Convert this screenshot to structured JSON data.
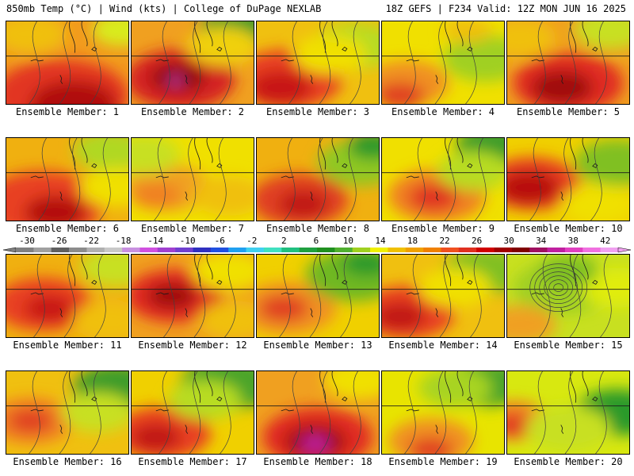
{
  "header": {
    "left": "850mb Temp (°C) | Wind (kts) | College of DuPage NEXLAB",
    "right": "18Z GEFS | F234 Valid: 12Z MON JUN 16 2025"
  },
  "colorbar": {
    "labels": [
      "-30",
      "-26",
      "-22",
      "-18",
      "-14",
      "-10",
      "-6",
      "-2",
      "2",
      "6",
      "10",
      "14",
      "18",
      "22",
      "26",
      "30",
      "34",
      "38",
      "42"
    ],
    "colors": [
      "#808080",
      "#a0a0a0",
      "#606060",
      "#8c8c8c",
      "#b0b0b0",
      "#c8c8c8",
      "#c890e0",
      "#d050e0",
      "#a040d0",
      "#7040d0",
      "#3030c0",
      "#2050e0",
      "#20a0f0",
      "#40d0f0",
      "#40e0c0",
      "#20c080",
      "#20a040",
      "#209020",
      "#50b030",
      "#a0d020",
      "#f0f000",
      "#f0c000",
      "#f0a000",
      "#f08000",
      "#f05020",
      "#e03020",
      "#d00000",
      "#a00000",
      "#800000",
      "#a01060",
      "#c020a0",
      "#e040c0",
      "#f070e0",
      "#f0a0f0"
    ]
  },
  "panels": [
    {
      "caption": "Ensemble Member: 1",
      "base": "#f29a1e",
      "blobs": [
        [
          0.45,
          0.9,
          0.55,
          "#e23424"
        ],
        [
          0.55,
          1.0,
          0.35,
          "#b00808"
        ],
        [
          0.95,
          0.1,
          0.25,
          "#d8ec1c"
        ],
        [
          0.2,
          0.15,
          0.3,
          "#f0c010"
        ]
      ]
    },
    {
      "caption": "Ensemble Member: 2",
      "base": "#f0a020",
      "blobs": [
        [
          0.4,
          0.7,
          0.45,
          "#d42020"
        ],
        [
          0.38,
          0.68,
          0.22,
          "#900808"
        ],
        [
          0.36,
          0.72,
          0.06,
          "#d040b0"
        ],
        [
          0.85,
          0.1,
          0.3,
          "#2c9a2c"
        ],
        [
          0.75,
          0.3,
          0.3,
          "#f0d010"
        ]
      ]
    },
    {
      "caption": "Ensemble Member: 3",
      "base": "#f0c010",
      "blobs": [
        [
          0.25,
          0.7,
          0.45,
          "#e84020"
        ],
        [
          0.2,
          0.8,
          0.25,
          "#c81414"
        ],
        [
          0.8,
          0.3,
          0.35,
          "#b8dc20"
        ],
        [
          0.6,
          0.4,
          0.3,
          "#f0e000"
        ]
      ]
    },
    {
      "caption": "Ensemble Member: 4",
      "base": "#f0e000",
      "blobs": [
        [
          0.2,
          0.75,
          0.35,
          "#f09020"
        ],
        [
          0.15,
          0.9,
          0.2,
          "#e04020"
        ],
        [
          0.85,
          0.45,
          0.35,
          "#a0d020"
        ],
        [
          0.7,
          0.1,
          0.2,
          "#f0c010"
        ]
      ]
    },
    {
      "caption": "Ensemble Member: 5",
      "base": "#f0a020",
      "blobs": [
        [
          0.5,
          0.75,
          0.45,
          "#e02c20"
        ],
        [
          0.45,
          0.8,
          0.25,
          "#a00808"
        ],
        [
          0.85,
          0.1,
          0.3,
          "#c8e020"
        ],
        [
          0.1,
          0.2,
          0.3,
          "#f0c010"
        ]
      ]
    },
    {
      "caption": "Ensemble Member: 6",
      "base": "#f0b010",
      "blobs": [
        [
          0.3,
          0.8,
          0.5,
          "#e84020"
        ],
        [
          0.4,
          0.9,
          0.25,
          "#b40c0c"
        ],
        [
          0.85,
          0.15,
          0.3,
          "#b0d820"
        ],
        [
          0.9,
          0.6,
          0.3,
          "#f0e000"
        ]
      ]
    },
    {
      "caption": "Ensemble Member: 7",
      "base": "#f0e000",
      "blobs": [
        [
          0.3,
          0.6,
          0.35,
          "#f0a020"
        ],
        [
          0.2,
          0.7,
          0.2,
          "#f08020"
        ],
        [
          0.8,
          0.7,
          0.3,
          "#f0c010"
        ],
        [
          0.1,
          0.2,
          0.3,
          "#c8e020"
        ]
      ]
    },
    {
      "caption": "Ensemble Member: 8",
      "base": "#f0b010",
      "blobs": [
        [
          0.35,
          0.75,
          0.4,
          "#e04020"
        ],
        [
          0.38,
          0.8,
          0.2,
          "#c01818"
        ],
        [
          0.85,
          0.3,
          0.35,
          "#90c820"
        ],
        [
          0.95,
          0.1,
          0.2,
          "#2c9a2c"
        ]
      ]
    },
    {
      "caption": "Ensemble Member: 9",
      "base": "#f0e000",
      "blobs": [
        [
          0.45,
          0.7,
          0.4,
          "#f08020"
        ],
        [
          0.42,
          0.72,
          0.2,
          "#e03020"
        ],
        [
          0.9,
          0.1,
          0.3,
          "#3c9c2c"
        ],
        [
          0.75,
          0.4,
          0.3,
          "#b8dc20"
        ]
      ]
    },
    {
      "caption": "Ensemble Member: 10",
      "base": "#f0d000",
      "blobs": [
        [
          0.2,
          0.55,
          0.4,
          "#e84020"
        ],
        [
          0.18,
          0.6,
          0.25,
          "#b80c0c"
        ],
        [
          0.9,
          0.3,
          0.35,
          "#80c020"
        ],
        [
          0.75,
          0.8,
          0.3,
          "#f0e000"
        ]
      ]
    },
    {
      "caption": "Ensemble Member: 11",
      "base": "#f0b010",
      "blobs": [
        [
          0.3,
          0.6,
          0.4,
          "#e84020"
        ],
        [
          0.35,
          0.65,
          0.2,
          "#c81414"
        ],
        [
          0.9,
          0.15,
          0.3,
          "#c8e020"
        ],
        [
          0.85,
          0.8,
          0.3,
          "#f0c010"
        ]
      ]
    },
    {
      "caption": "Ensemble Member: 12",
      "base": "#f0a020",
      "blobs": [
        [
          0.35,
          0.5,
          0.4,
          "#e02c20"
        ],
        [
          0.33,
          0.5,
          0.2,
          "#a00808"
        ],
        [
          0.8,
          0.2,
          0.3,
          "#f0e000"
        ],
        [
          0.85,
          0.8,
          0.3,
          "#f0c010"
        ]
      ]
    },
    {
      "caption": "Ensemble Member: 13",
      "base": "#f0d000",
      "blobs": [
        [
          0.25,
          0.65,
          0.4,
          "#f09020"
        ],
        [
          0.22,
          0.65,
          0.2,
          "#e04020"
        ],
        [
          0.8,
          0.25,
          0.4,
          "#70b820"
        ],
        [
          0.9,
          0.1,
          0.2,
          "#2c9a2c"
        ]
      ]
    },
    {
      "caption": "Ensemble Member: 14",
      "base": "#f0c010",
      "blobs": [
        [
          0.2,
          0.7,
          0.4,
          "#e84020"
        ],
        [
          0.15,
          0.75,
          0.2,
          "#c01818"
        ],
        [
          0.85,
          0.2,
          0.35,
          "#80c020"
        ],
        [
          0.6,
          0.4,
          0.3,
          "#f0e000"
        ]
      ]
    },
    {
      "caption": "Ensemble Member: 15",
      "base": "#c8e020",
      "blobs": [
        [
          0.45,
          0.4,
          0.4,
          "#a0d020"
        ],
        [
          0.1,
          0.85,
          0.3,
          "#f0a020"
        ],
        [
          0.9,
          0.4,
          0.3,
          "#e0ec10"
        ],
        [
          0.5,
          0.2,
          0.25,
          "#80c020"
        ]
      ]
    },
    {
      "caption": "Ensemble Member: 16",
      "base": "#f0c010",
      "blobs": [
        [
          0.2,
          0.6,
          0.35,
          "#f08020"
        ],
        [
          0.2,
          0.6,
          0.18,
          "#e04020"
        ],
        [
          0.9,
          0.2,
          0.35,
          "#3c9c2c"
        ],
        [
          0.75,
          0.5,
          0.3,
          "#c8e020"
        ]
      ]
    },
    {
      "caption": "Ensemble Member: 17",
      "base": "#f0d000",
      "blobs": [
        [
          0.25,
          0.75,
          0.4,
          "#e84020"
        ],
        [
          0.2,
          0.8,
          0.2,
          "#c01818"
        ],
        [
          0.8,
          0.15,
          0.4,
          "#4ca42c"
        ],
        [
          0.6,
          0.35,
          0.3,
          "#b8dc20"
        ]
      ]
    },
    {
      "caption": "Ensemble Member: 18",
      "base": "#f0a020",
      "blobs": [
        [
          0.5,
          0.8,
          0.45,
          "#e02c20"
        ],
        [
          0.48,
          0.85,
          0.25,
          "#a00808"
        ],
        [
          0.48,
          0.88,
          0.12,
          "#c020a0"
        ],
        [
          0.85,
          0.1,
          0.3,
          "#f0e000"
        ]
      ]
    },
    {
      "caption": "Ensemble Member: 19",
      "base": "#e8e400",
      "blobs": [
        [
          0.4,
          0.85,
          0.35,
          "#f09020"
        ],
        [
          0.4,
          0.95,
          0.18,
          "#e04020"
        ],
        [
          0.85,
          0.15,
          0.35,
          "#4ca42c"
        ],
        [
          0.6,
          0.2,
          0.3,
          "#a8d420"
        ]
      ]
    },
    {
      "caption": "Ensemble Member: 20",
      "base": "#d8e810",
      "blobs": [
        [
          0.05,
          0.6,
          0.3,
          "#f08020"
        ],
        [
          0.05,
          0.65,
          0.15,
          "#e03020"
        ],
        [
          0.9,
          0.5,
          0.35,
          "#2c9a2c"
        ],
        [
          0.5,
          0.7,
          0.35,
          "#c8e020"
        ]
      ]
    }
  ]
}
